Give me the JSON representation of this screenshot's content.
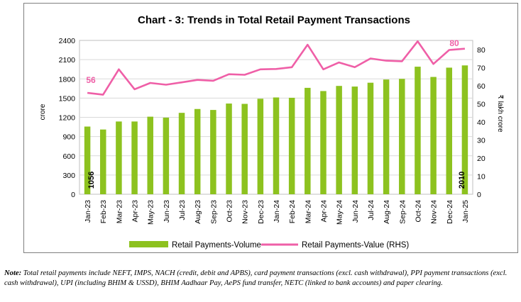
{
  "chart_data": {
    "type": "bar+line",
    "title": "Chart - 3: Trends in Total Retail Payment Transactions",
    "categories": [
      "Jan-23",
      "Feb-23",
      "Mar-23",
      "Apr-23",
      "May-23",
      "Jun-23",
      "Jul-23",
      "Aug-23",
      "Sep-23",
      "Oct-23",
      "Nov-23",
      "Dec-23",
      "Jan-24",
      "Feb-24",
      "Mar-24",
      "Apr-24",
      "May-24",
      "Jun-24",
      "Jul-24",
      "Aug-24",
      "Sep-24",
      "Oct-24",
      "Nov-24",
      "Dec-24",
      "Jan-25"
    ],
    "ylabel": "crore",
    "y2label": "₹ lakh crore",
    "ylim": [
      0,
      2400
    ],
    "y2lim": [
      0,
      85
    ],
    "yticks": [
      "0",
      "300",
      "600",
      "900",
      "1200",
      "1500",
      "1800",
      "2100",
      "2400"
    ],
    "y2ticks": [
      "0",
      "10",
      "20",
      "30",
      "40",
      "50",
      "60",
      "70",
      "80"
    ],
    "series": [
      {
        "name": "Retail Payments-Volume",
        "type": "bar",
        "axis": "left",
        "color": "#8dc21f",
        "values": [
          1056,
          1010,
          1135,
          1135,
          1210,
          1195,
          1270,
          1330,
          1315,
          1415,
          1410,
          1490,
          1510,
          1505,
          1660,
          1610,
          1690,
          1680,
          1740,
          1790,
          1800,
          1990,
          1830,
          1975,
          2010
        ]
      },
      {
        "name": "Retail Payments-Value (RHS)",
        "type": "line",
        "axis": "right",
        "color": "#ef5fa7",
        "values": [
          56,
          55,
          69,
          58,
          61.5,
          60.5,
          61.8,
          63.2,
          62.7,
          66.3,
          66,
          69,
          69.2,
          70.2,
          82.6,
          69,
          72.8,
          70.2,
          75,
          73.8,
          73.5,
          84.5,
          72,
          79.7,
          80.4
        ]
      }
    ],
    "data_labels": {
      "volume_first": "1056",
      "volume_last": "2010",
      "value_first": "56",
      "value_last": "80"
    },
    "legend": {
      "position": "bottom"
    }
  },
  "note": {
    "prefix": "Note:",
    "text": "Total retail payments include NEFT, IMPS, NACH (credit, debit and APBS), card payment transactions (excl. cash withdrawal), PPI payment transactions (excl. cash withdrawal), UPI (including BHIM & USSD), BHIM Aadhaar Pay, AePS fund transfer, NETC (linked to bank accounts) and paper clearing."
  }
}
